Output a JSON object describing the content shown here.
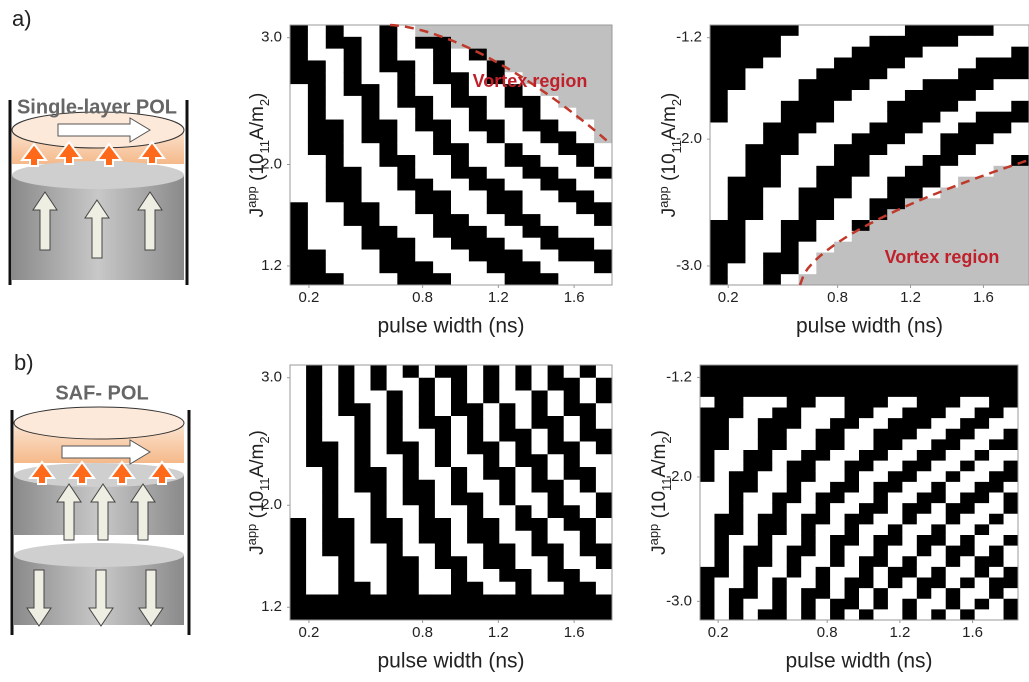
{
  "panels": [
    {
      "label": "a)",
      "device": "Single-layer POL"
    },
    {
      "label": "b)",
      "device": "SAF- POL"
    }
  ],
  "charts": [
    {
      "type": "map",
      "xlabel": "pulse width (ns)",
      "ylabel": {
        "main": "J",
        "sub": "app",
        "base": " (10",
        "exp": "11",
        "unit": "A/m",
        "unit_exp": "2",
        "close": ")"
      },
      "xlim": [
        0.1,
        1.8
      ],
      "xticks": [
        0.2,
        0.8,
        1.2,
        1.6
      ],
      "ylim": [
        1.05,
        3.1
      ],
      "yticks": [
        {
          "value": 3,
          "label": "3.0"
        },
        {
          "value": 2,
          "label": "2.0"
        },
        1.2
      ],
      "annotation": "Vortex region"
    },
    {
      "type": "map",
      "xlabel": "pulse width (ns)",
      "ylabel": {
        "main": "J",
        "sub": "app",
        "base": " (10",
        "exp": "11",
        "unit": "A/m",
        "unit_exp": "2",
        "close": ")"
      },
      "xlim": [
        0.1,
        1.85
      ],
      "xticks": [
        0.2,
        0.8,
        1.2,
        1.6
      ],
      "ylim": [
        -3.15,
        -1.1
      ],
      "yticks": [
        -1.2,
        {
          "value": -2,
          "label": "-2.0"
        },
        {
          "value": -3,
          "label": "-3.0"
        }
      ],
      "annotation": "Vortex region"
    },
    {
      "type": "map",
      "xlabel": "pulse width (ns)",
      "ylabel": {
        "main": "J",
        "sub": "app",
        "base": " (10",
        "exp": "11",
        "unit": "A/m",
        "unit_exp": "2",
        "close": ")"
      },
      "xlim": [
        0.1,
        1.8
      ],
      "xticks": [
        0.2,
        0.8,
        1.2,
        1.6
      ],
      "ylim": [
        1.1,
        3.1
      ],
      "yticks": [
        {
          "value": 3,
          "label": "3.0"
        },
        {
          "value": 2,
          "label": "2.0"
        },
        1.2
      ]
    },
    {
      "type": "map",
      "xlabel": "pulse width (ns)",
      "ylabel": {
        "main": "J",
        "sub": "app",
        "base": " (10",
        "exp": "11",
        "unit": "A/m",
        "unit_exp": "2",
        "close": ")"
      },
      "xlim": [
        0.1,
        1.85
      ],
      "xticks": [
        0.2,
        0.8,
        1.2,
        1.6
      ],
      "ylim": [
        -3.15,
        -1.1
      ],
      "yticks": [
        -1.2,
        {
          "value": -2,
          "label": "-2.0"
        },
        {
          "value": -3,
          "label": "-3.0"
        }
      ]
    }
  ]
}
